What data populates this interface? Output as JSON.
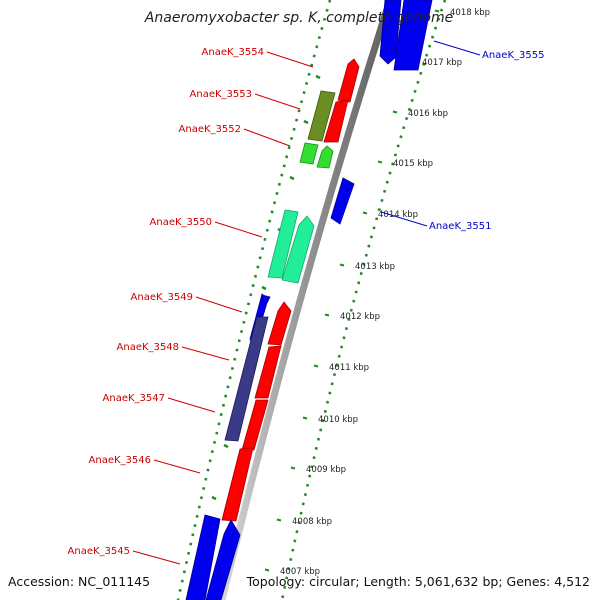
{
  "title": "Anaeromyxobacter sp. K, complete genome",
  "accession": "Accession: NC_011145",
  "summary": "Topology: circular; Length: 5,061,632 bp; Genes: 4,512",
  "colors": {
    "forward_label": "#cc0000",
    "reverse_label": "#0000cc",
    "tick_green": "#228b22",
    "backbone": "#8c8c8c"
  },
  "ticks": [
    {
      "label": "4018 kbp"
    },
    {
      "label": "4017 kbp"
    },
    {
      "label": "4016 kbp"
    },
    {
      "label": "4015 kbp"
    },
    {
      "label": "4014 kbp"
    },
    {
      "label": "4013 kbp"
    },
    {
      "label": "4012 kbp"
    },
    {
      "label": "4011 kbp"
    },
    {
      "label": "4010 kbp"
    },
    {
      "label": "4009 kbp"
    },
    {
      "label": "4008 kbp"
    },
    {
      "label": "4007 kbp"
    }
  ],
  "genes": [
    {
      "name": "AnaeK_3555",
      "strand": "reverse",
      "color": "blue"
    },
    {
      "name": "AnaeK_3554",
      "strand": "forward",
      "color": "red"
    },
    {
      "name": "AnaeK_3553",
      "strand": "forward",
      "color": "olive"
    },
    {
      "name": "AnaeK_3552",
      "strand": "forward",
      "color": "green"
    },
    {
      "name": "AnaeK_3551",
      "strand": "reverse",
      "color": "blue"
    },
    {
      "name": "AnaeK_3550",
      "strand": "forward",
      "color": "aquamarine"
    },
    {
      "name": "AnaeK_3549",
      "strand": "forward",
      "color": "blue"
    },
    {
      "name": "AnaeK_3548",
      "strand": "forward",
      "color": "slateblue"
    },
    {
      "name": "AnaeK_3547",
      "strand": "forward",
      "color": "red"
    },
    {
      "name": "AnaeK_3546",
      "strand": "forward",
      "color": "red"
    },
    {
      "name": "AnaeK_3545",
      "strand": "forward",
      "color": "blue"
    }
  ]
}
